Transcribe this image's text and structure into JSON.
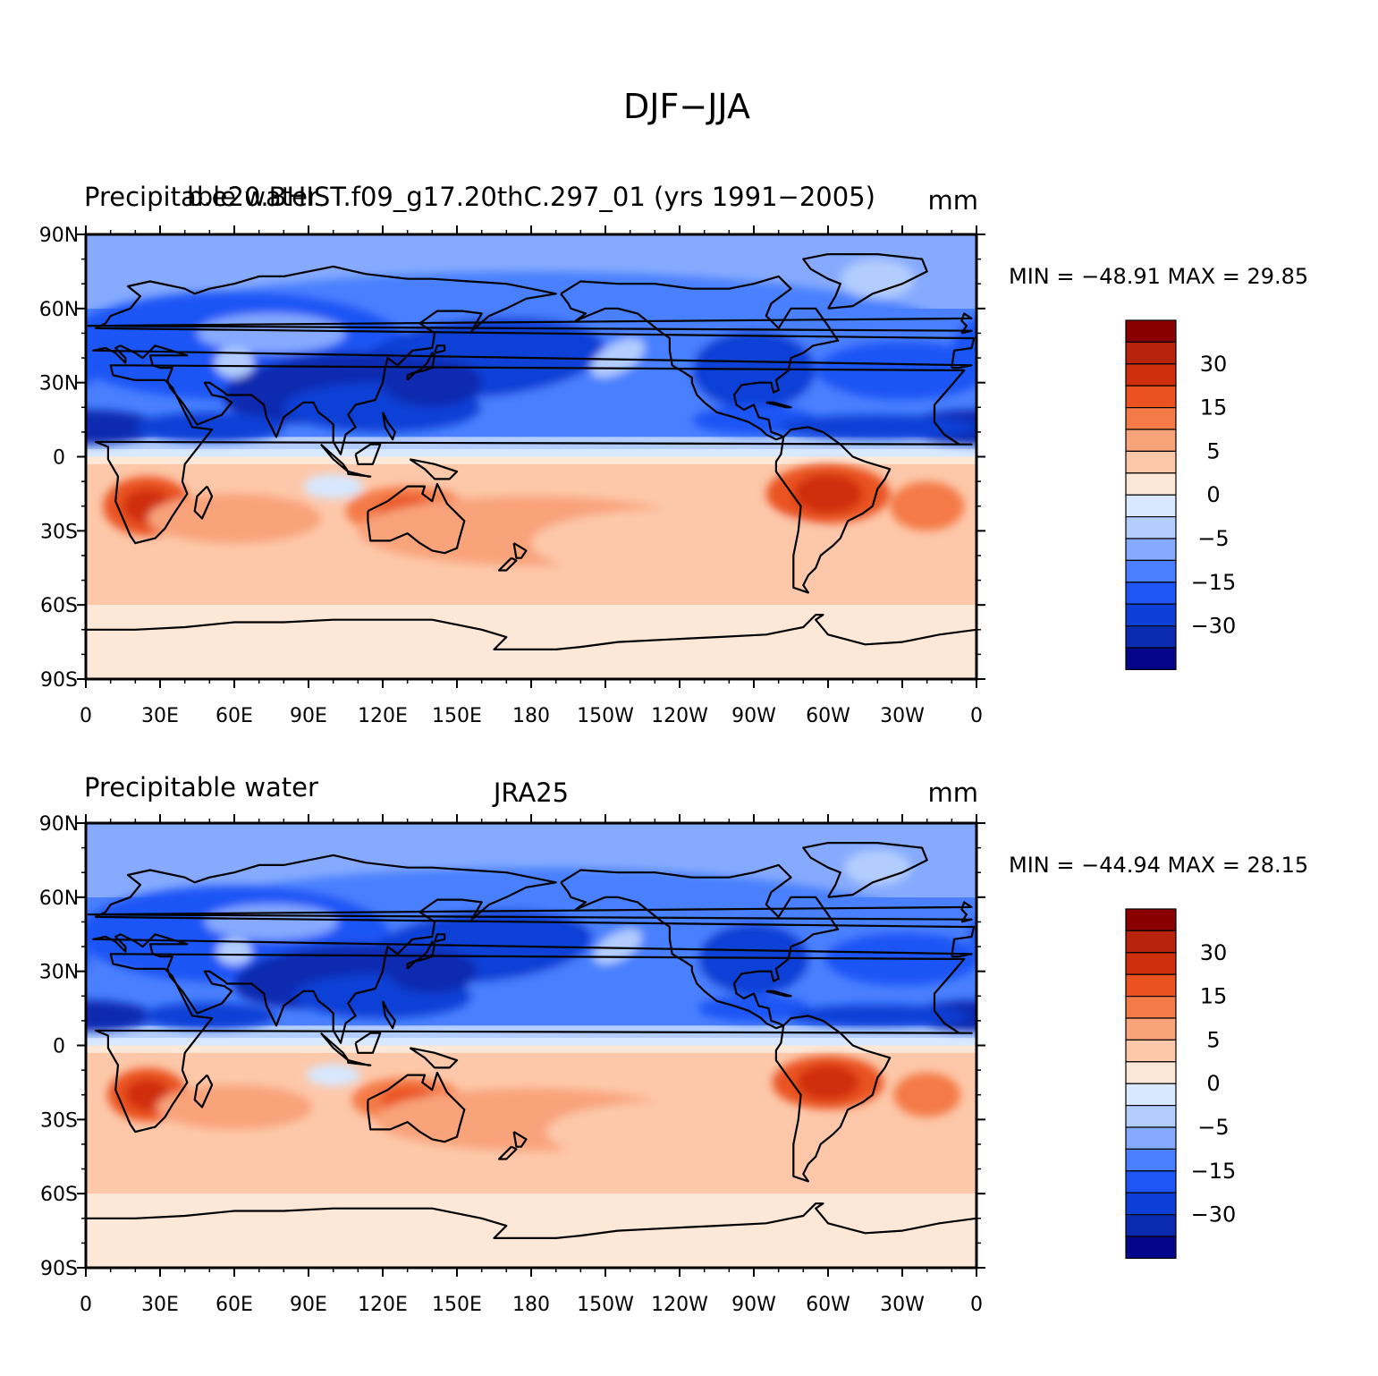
{
  "figure": {
    "title": "DJF−JJA"
  },
  "colors": {
    "palette": [
      "#05058a",
      "#0a2ab0",
      "#0d3fd6",
      "#1f55f5",
      "#4a80ff",
      "#86aaff",
      "#b3cdff",
      "#d7e8ff",
      "#fde7d6",
      "#fdc8aa",
      "#f9a37a",
      "#f47a47",
      "#ea5222",
      "#cf2e0c",
      "#b8230d",
      "#8a0000"
    ],
    "coast": "#000000"
  },
  "panels": [
    {
      "left_text": "Precipitable water",
      "center_text": "b.e20.BHIST.f09_g17.20thC.297_01 (yrs 1991−2005)",
      "right_text": "mm",
      "min_max": "MIN = −48.91  MAX =  29.85",
      "strength": 1.0
    },
    {
      "left_text": "Precipitable water",
      "center_text": "JRA25",
      "right_text": "mm",
      "min_max": "MIN = −44.94  MAX =  28.15",
      "strength": 0.9
    }
  ],
  "axes": {
    "x_ticks": [
      "0",
      "30E",
      "60E",
      "90E",
      "120E",
      "150E",
      "180",
      "150W",
      "120W",
      "90W",
      "60W",
      "30W",
      "0"
    ],
    "y_ticks": [
      "90N",
      "60N",
      "30N",
      "0",
      "30S",
      "60S",
      "90S"
    ]
  },
  "legend": {
    "labels": [
      "30",
      "15",
      "5",
      "0",
      "−5",
      "−15",
      "−30"
    ]
  }
}
